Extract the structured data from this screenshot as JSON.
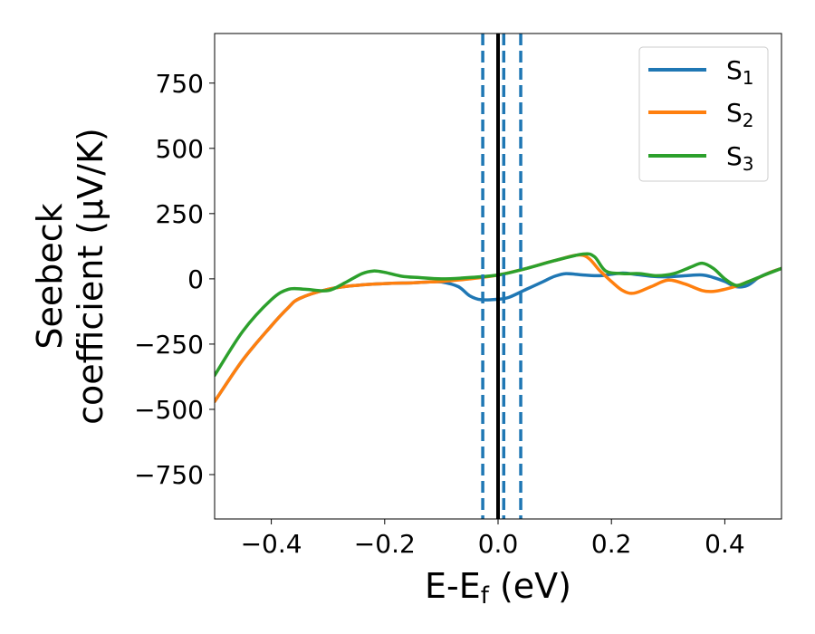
{
  "chart_data": {
    "type": "line",
    "xlabel": "E-E",
    "xlabel_sub": "f",
    "xlabel_unit": " (eV)",
    "ylabel_line1": "Seebeck",
    "ylabel_line2": "coefficient  (μV/K)",
    "xlim": [
      -0.5,
      0.5
    ],
    "ylim": [
      -920,
      940
    ],
    "x_ticks": [
      -0.4,
      -0.2,
      0.0,
      0.2,
      0.4
    ],
    "x_tick_labels": [
      "−0.4",
      "−0.2",
      "0.0",
      "0.2",
      "0.4"
    ],
    "y_ticks": [
      750,
      500,
      250,
      0,
      -250,
      -500,
      -750
    ],
    "y_tick_labels": [
      "750",
      "500",
      "250",
      "0",
      "−250",
      "−500",
      "−750"
    ],
    "grid": false,
    "legend_position": "top-right",
    "vertical_lines": [
      {
        "x": 0.0,
        "style": "solid",
        "color": "#000000"
      },
      {
        "x": -0.027,
        "style": "dashed",
        "color": "#1f77b4"
      },
      {
        "x": 0.01,
        "style": "dashed",
        "color": "#1f77b4"
      },
      {
        "x": 0.04,
        "style": "dashed",
        "color": "#1f77b4"
      }
    ],
    "series": [
      {
        "name": "S",
        "subscript": "1",
        "color": "#1f77b4",
        "x": [
          -0.5,
          -0.45,
          -0.4,
          -0.37,
          -0.35,
          -0.3,
          -0.25,
          -0.2,
          -0.15,
          -0.12,
          -0.1,
          -0.07,
          -0.05,
          -0.03,
          0.0,
          0.02,
          0.05,
          0.08,
          0.1,
          0.12,
          0.15,
          0.18,
          0.2,
          0.22,
          0.24,
          0.27,
          0.3,
          0.33,
          0.36,
          0.38,
          0.4,
          0.42,
          0.44,
          0.46,
          0.48,
          0.5
        ],
        "y": [
          -470,
          -310,
          -180,
          -110,
          -75,
          -40,
          -25,
          -18,
          -15,
          -12,
          -12,
          -30,
          -65,
          -80,
          -78,
          -70,
          -40,
          -10,
          10,
          20,
          15,
          12,
          18,
          22,
          18,
          10,
          8,
          12,
          15,
          5,
          -10,
          -30,
          -25,
          5,
          25,
          40
        ]
      },
      {
        "name": "S",
        "subscript": "2",
        "color": "#ff7f0e",
        "x": [
          -0.5,
          -0.45,
          -0.4,
          -0.37,
          -0.35,
          -0.3,
          -0.25,
          -0.2,
          -0.15,
          -0.12,
          -0.1,
          -0.05,
          0.0,
          0.05,
          0.1,
          0.15,
          0.18,
          0.2,
          0.22,
          0.24,
          0.27,
          0.3,
          0.33,
          0.36,
          0.38,
          0.4,
          0.42,
          0.44,
          0.46,
          0.48,
          0.5
        ],
        "y": [
          -470,
          -310,
          -180,
          -110,
          -75,
          -40,
          -25,
          -18,
          -15,
          -12,
          -10,
          0,
          15,
          40,
          70,
          90,
          30,
          -10,
          -45,
          -55,
          -30,
          -5,
          -20,
          -45,
          -48,
          -40,
          -28,
          -12,
          5,
          25,
          40
        ]
      },
      {
        "name": "S",
        "subscript": "3",
        "color": "#2ca02c",
        "x": [
          -0.5,
          -0.45,
          -0.4,
          -0.37,
          -0.34,
          -0.3,
          -0.27,
          -0.24,
          -0.22,
          -0.2,
          -0.17,
          -0.14,
          -0.1,
          -0.05,
          0.0,
          0.05,
          0.1,
          0.15,
          0.17,
          0.19,
          0.22,
          0.25,
          0.28,
          0.31,
          0.34,
          0.36,
          0.38,
          0.4,
          0.42,
          0.44,
          0.47,
          0.5
        ],
        "y": [
          -370,
          -200,
          -80,
          -40,
          -40,
          -45,
          -15,
          20,
          30,
          25,
          10,
          5,
          0,
          5,
          15,
          40,
          70,
          95,
          85,
          30,
          20,
          20,
          12,
          20,
          45,
          60,
          40,
          0,
          -25,
          -12,
          15,
          40
        ]
      }
    ]
  }
}
